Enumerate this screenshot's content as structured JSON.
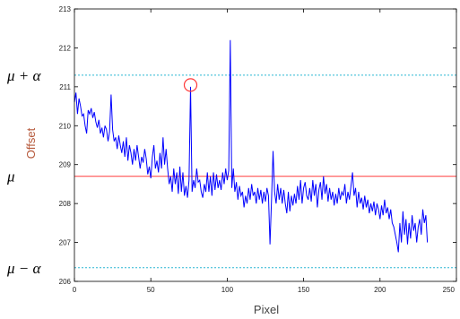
{
  "chart_data": {
    "type": "line",
    "xlabel": "Pixel",
    "ylabel": "Offset",
    "xlim": [
      0,
      250
    ],
    "ylim": [
      206,
      213
    ],
    "x_ticks": [
      "0",
      "50",
      "100",
      "150",
      "200",
      "250"
    ],
    "y_ticks": [
      "206",
      "207",
      "208",
      "209",
      "210",
      "211",
      "212",
      "213"
    ],
    "grid": false,
    "colors": {
      "series": "#0000ff",
      "mean": "#ff3b3b",
      "bounds": "#2ab6d4",
      "marker": "#ff3b3b"
    },
    "reference_lines": [
      {
        "label": "μ + α",
        "value": 211.3,
        "style": "dashed"
      },
      {
        "label": "μ",
        "value": 208.7,
        "style": "solid"
      },
      {
        "label": "μ − α",
        "value": 206.35,
        "style": "dashed"
      }
    ],
    "highlight": {
      "x": 76,
      "y": 211.0,
      "shape": "circle"
    },
    "series": [
      {
        "values": [
          [
            0,
            210.6
          ],
          [
            1,
            210.85
          ],
          [
            2,
            210.3
          ],
          [
            3,
            210.7
          ],
          [
            4,
            210.5
          ],
          [
            5,
            210.25
          ],
          [
            6,
            210.3
          ],
          [
            7,
            210.0
          ],
          [
            8,
            209.8
          ],
          [
            9,
            210.4
          ],
          [
            10,
            210.3
          ],
          [
            11,
            210.45
          ],
          [
            12,
            210.2
          ],
          [
            13,
            210.35
          ],
          [
            14,
            210.1
          ],
          [
            15,
            209.95
          ],
          [
            16,
            210.15
          ],
          [
            17,
            209.8
          ],
          [
            18,
            209.95
          ],
          [
            19,
            209.7
          ],
          [
            20,
            210.0
          ],
          [
            21,
            209.9
          ],
          [
            22,
            209.6
          ],
          [
            23,
            209.85
          ],
          [
            24,
            210.8
          ],
          [
            25,
            209.9
          ],
          [
            26,
            209.6
          ],
          [
            27,
            209.7
          ],
          [
            28,
            209.4
          ],
          [
            29,
            209.75
          ],
          [
            30,
            209.5
          ],
          [
            31,
            209.3
          ],
          [
            32,
            209.6
          ],
          [
            33,
            209.2
          ],
          [
            34,
            209.7
          ],
          [
            35,
            209.1
          ],
          [
            36,
            209.5
          ],
          [
            37,
            209.3
          ],
          [
            38,
            209.0
          ],
          [
            39,
            209.4
          ],
          [
            40,
            209.1
          ],
          [
            41,
            209.5
          ],
          [
            42,
            209.2
          ],
          [
            43,
            208.9
          ],
          [
            44,
            209.2
          ],
          [
            45,
            209.05
          ],
          [
            46,
            209.4
          ],
          [
            47,
            209.15
          ],
          [
            48,
            208.75
          ],
          [
            49,
            208.95
          ],
          [
            50,
            208.65
          ],
          [
            51,
            209.2
          ],
          [
            52,
            209.5
          ],
          [
            53,
            208.9
          ],
          [
            54,
            209.1
          ],
          [
            55,
            208.8
          ],
          [
            56,
            209.3
          ],
          [
            57,
            208.9
          ],
          [
            58,
            209.7
          ],
          [
            59,
            209.0
          ],
          [
            60,
            209.4
          ],
          [
            61,
            208.9
          ],
          [
            62,
            208.5
          ],
          [
            63,
            208.7
          ],
          [
            64,
            208.3
          ],
          [
            65,
            208.9
          ],
          [
            66,
            208.5
          ],
          [
            67,
            208.8
          ],
          [
            68,
            208.25
          ],
          [
            69,
            208.95
          ],
          [
            70,
            208.3
          ],
          [
            71,
            208.8
          ],
          [
            72,
            208.2
          ],
          [
            73,
            208.45
          ],
          [
            74,
            208.15
          ],
          [
            75,
            208.6
          ],
          [
            76,
            211.0
          ],
          [
            77,
            208.3
          ],
          [
            78,
            208.6
          ],
          [
            79,
            208.4
          ],
          [
            80,
            208.9
          ],
          [
            81,
            208.55
          ],
          [
            82,
            208.6
          ],
          [
            83,
            208.3
          ],
          [
            84,
            208.15
          ],
          [
            85,
            208.5
          ],
          [
            86,
            208.3
          ],
          [
            87,
            208.8
          ],
          [
            88,
            208.3
          ],
          [
            89,
            208.7
          ],
          [
            90,
            208.2
          ],
          [
            91,
            208.8
          ],
          [
            92,
            208.35
          ],
          [
            93,
            208.75
          ],
          [
            94,
            208.4
          ],
          [
            95,
            208.6
          ],
          [
            96,
            208.35
          ],
          [
            97,
            208.8
          ],
          [
            98,
            208.5
          ],
          [
            99,
            208.9
          ],
          [
            100,
            208.6
          ],
          [
            101,
            208.85
          ],
          [
            102,
            212.2
          ],
          [
            103,
            208.4
          ],
          [
            104,
            208.9
          ],
          [
            105,
            208.3
          ],
          [
            106,
            208.55
          ],
          [
            107,
            208.1
          ],
          [
            108,
            208.45
          ],
          [
            109,
            208.2
          ],
          [
            110,
            208.3
          ],
          [
            111,
            207.9
          ],
          [
            112,
            208.2
          ],
          [
            113,
            208.0
          ],
          [
            114,
            208.4
          ],
          [
            115,
            208.1
          ],
          [
            116,
            208.5
          ],
          [
            117,
            208.2
          ],
          [
            118,
            208.3
          ],
          [
            119,
            208.0
          ],
          [
            120,
            208.4
          ],
          [
            121,
            208.1
          ],
          [
            122,
            208.35
          ],
          [
            123,
            208.0
          ],
          [
            124,
            208.3
          ],
          [
            125,
            208.05
          ],
          [
            126,
            208.4
          ],
          [
            127,
            208.2
          ],
          [
            128,
            206.95
          ],
          [
            129,
            208.1
          ],
          [
            130,
            209.35
          ],
          [
            131,
            208.3
          ],
          [
            132,
            208.0
          ],
          [
            133,
            208.5
          ],
          [
            134,
            208.1
          ],
          [
            135,
            208.4
          ],
          [
            136,
            208.0
          ],
          [
            137,
            208.35
          ],
          [
            138,
            208.0
          ],
          [
            139,
            207.75
          ],
          [
            140,
            208.3
          ],
          [
            141,
            207.8
          ],
          [
            142,
            208.2
          ],
          [
            143,
            207.95
          ],
          [
            144,
            208.25
          ],
          [
            145,
            208.0
          ],
          [
            146,
            208.45
          ],
          [
            147,
            208.1
          ],
          [
            148,
            208.6
          ],
          [
            149,
            208.0
          ],
          [
            150,
            208.4
          ],
          [
            151,
            208.55
          ],
          [
            152,
            208.2
          ],
          [
            153,
            208.1
          ],
          [
            154,
            208.4
          ],
          [
            155,
            208.05
          ],
          [
            156,
            208.6
          ],
          [
            157,
            208.2
          ],
          [
            158,
            208.5
          ],
          [
            159,
            207.9
          ],
          [
            160,
            208.35
          ],
          [
            161,
            208.55
          ],
          [
            162,
            208.1
          ],
          [
            163,
            208.7
          ],
          [
            164,
            208.25
          ],
          [
            165,
            208.5
          ],
          [
            166,
            208.05
          ],
          [
            167,
            208.4
          ],
          [
            168,
            208.1
          ],
          [
            169,
            208.3
          ],
          [
            170,
            207.95
          ],
          [
            171,
            208.25
          ],
          [
            172,
            208.0
          ],
          [
            173,
            208.4
          ],
          [
            174,
            208.1
          ],
          [
            175,
            208.3
          ],
          [
            176,
            208.2
          ],
          [
            177,
            208.5
          ],
          [
            178,
            208.0
          ],
          [
            179,
            208.3
          ],
          [
            180,
            208.1
          ],
          [
            181,
            208.45
          ],
          [
            182,
            208.8
          ],
          [
            183,
            208.2
          ],
          [
            184,
            208.4
          ],
          [
            185,
            207.9
          ],
          [
            186,
            208.3
          ],
          [
            187,
            208.0
          ],
          [
            188,
            208.15
          ],
          [
            189,
            207.85
          ],
          [
            190,
            208.2
          ],
          [
            191,
            207.9
          ],
          [
            192,
            208.1
          ],
          [
            193,
            207.75
          ],
          [
            194,
            208.0
          ],
          [
            195,
            207.8
          ],
          [
            196,
            208.05
          ],
          [
            197,
            207.7
          ],
          [
            198,
            208.0
          ],
          [
            199,
            207.85
          ],
          [
            200,
            207.6
          ],
          [
            201,
            207.95
          ],
          [
            202,
            207.7
          ],
          [
            203,
            208.1
          ],
          [
            204,
            207.75
          ],
          [
            205,
            207.9
          ],
          [
            206,
            207.6
          ],
          [
            207,
            207.85
          ],
          [
            208,
            207.5
          ],
          [
            209,
            207.4
          ],
          [
            210,
            207.2
          ],
          [
            211,
            207.0
          ],
          [
            212,
            206.75
          ],
          [
            213,
            207.5
          ],
          [
            214,
            207.0
          ],
          [
            215,
            207.8
          ],
          [
            216,
            207.2
          ],
          [
            217,
            207.6
          ],
          [
            218,
            206.95
          ],
          [
            219,
            207.5
          ],
          [
            220,
            207.1
          ],
          [
            221,
            207.7
          ],
          [
            222,
            207.3
          ],
          [
            223,
            207.5
          ],
          [
            224,
            207.0
          ],
          [
            225,
            207.4
          ],
          [
            226,
            207.6
          ],
          [
            227,
            207.2
          ],
          [
            228,
            207.85
          ],
          [
            229,
            207.5
          ],
          [
            230,
            207.7
          ],
          [
            231,
            207.0
          ]
        ]
      }
    ]
  }
}
